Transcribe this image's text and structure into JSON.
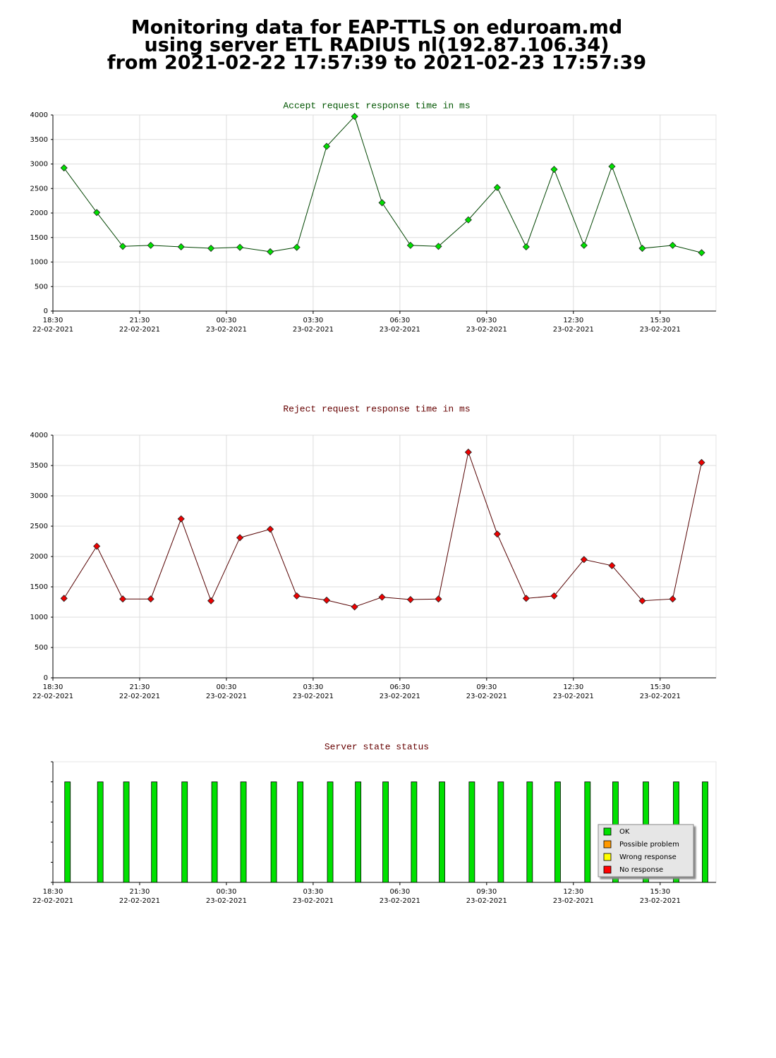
{
  "title_lines": [
    "Monitoring data for EAP-TTLS on eduroam.md",
    "using server ETL RADIUS nl(192.87.106.34)",
    "from 2021-02-22 17:57:39 to 2021-02-23 17:57:39"
  ],
  "chart_data": [
    {
      "type": "line",
      "title": "Accept request response time in ms",
      "title_color": "#005500",
      "x": [
        "2021-02-22 18:53",
        "2021-02-22 20:01",
        "2021-02-22 20:55",
        "2021-02-22 21:53",
        "2021-02-22 22:56",
        "2021-02-22 23:58",
        "2021-02-23 00:58",
        "2021-02-23 02:01",
        "2021-02-23 02:56",
        "2021-02-23 03:58",
        "2021-02-23 04:56",
        "2021-02-23 05:53",
        "2021-02-23 06:52",
        "2021-02-23 07:50",
        "2021-02-23 08:52",
        "2021-02-23 09:52",
        "2021-02-23 10:52",
        "2021-02-23 11:50",
        "2021-02-23 12:52",
        "2021-02-23 13:50",
        "2021-02-23 14:53",
        "2021-02-23 15:56",
        "2021-02-23 16:56"
      ],
      "values": [
        2920,
        2010,
        1320,
        1340,
        1310,
        1280,
        1300,
        1210,
        1300,
        3360,
        3970,
        2210,
        1340,
        1320,
        1860,
        2520,
        1310,
        2890,
        1340,
        2950,
        1280,
        1340,
        1190
      ],
      "color": "#004400",
      "marker_color": "#00e000",
      "xlim": [
        "2021-02-22 18:30",
        "2021-02-23 17:26"
      ],
      "xticks": [
        {
          "value": "2021-02-22 18:30",
          "label": [
            "18:30",
            "22-02-2021"
          ]
        },
        {
          "value": "2021-02-22 21:30",
          "label": [
            "21:30",
            "22-02-2021"
          ]
        },
        {
          "value": "2021-02-23 00:30",
          "label": [
            "00:30",
            "23-02-2021"
          ]
        },
        {
          "value": "2021-02-23 03:30",
          "label": [
            "03:30",
            "23-02-2021"
          ]
        },
        {
          "value": "2021-02-23 06:30",
          "label": [
            "06:30",
            "23-02-2021"
          ]
        },
        {
          "value": "2021-02-23 09:30",
          "label": [
            "09:30",
            "23-02-2021"
          ]
        },
        {
          "value": "2021-02-23 12:30",
          "label": [
            "12:30",
            "23-02-2021"
          ]
        },
        {
          "value": "2021-02-23 15:30",
          "label": [
            "15:30",
            "23-02-2021"
          ]
        }
      ],
      "ylim": [
        0,
        4000
      ],
      "yticks": [
        0,
        500,
        1000,
        1500,
        2000,
        2500,
        3000,
        3500,
        4000
      ],
      "grid": true
    },
    {
      "type": "line",
      "title": "Reject request response time in ms",
      "title_color": "#660000",
      "x": [
        "2021-02-22 18:53",
        "2021-02-22 20:01",
        "2021-02-22 20:55",
        "2021-02-22 21:53",
        "2021-02-22 22:56",
        "2021-02-22 23:58",
        "2021-02-23 00:58",
        "2021-02-23 02:01",
        "2021-02-23 02:56",
        "2021-02-23 03:58",
        "2021-02-23 04:56",
        "2021-02-23 05:53",
        "2021-02-23 06:52",
        "2021-02-23 07:50",
        "2021-02-23 08:52",
        "2021-02-23 09:52",
        "2021-02-23 10:52",
        "2021-02-23 11:50",
        "2021-02-23 12:52",
        "2021-02-23 13:50",
        "2021-02-23 14:53",
        "2021-02-23 15:56",
        "2021-02-23 16:56"
      ],
      "values": [
        1310,
        2170,
        1300,
        1300,
        2620,
        1270,
        2310,
        2450,
        1350,
        1280,
        1170,
        1330,
        1290,
        1300,
        3720,
        2370,
        1310,
        1350,
        1950,
        1850,
        1270,
        1300,
        3550
      ],
      "color": "#550000",
      "marker_color": "#ee0000",
      "xlim": [
        "2021-02-22 18:30",
        "2021-02-23 17:26"
      ],
      "xticks": [
        {
          "value": "2021-02-22 18:30",
          "label": [
            "18:30",
            "22-02-2021"
          ]
        },
        {
          "value": "2021-02-22 21:30",
          "label": [
            "21:30",
            "22-02-2021"
          ]
        },
        {
          "value": "2021-02-23 00:30",
          "label": [
            "00:30",
            "23-02-2021"
          ]
        },
        {
          "value": "2021-02-23 03:30",
          "label": [
            "03:30",
            "23-02-2021"
          ]
        },
        {
          "value": "2021-02-23 06:30",
          "label": [
            "06:30",
            "23-02-2021"
          ]
        },
        {
          "value": "2021-02-23 09:30",
          "label": [
            "09:30",
            "23-02-2021"
          ]
        },
        {
          "value": "2021-02-23 12:30",
          "label": [
            "12:30",
            "23-02-2021"
          ]
        },
        {
          "value": "2021-02-23 15:30",
          "label": [
            "15:30",
            "23-02-2021"
          ]
        }
      ],
      "ylim": [
        0,
        4000
      ],
      "yticks": [
        0,
        500,
        1000,
        1500,
        2000,
        2500,
        3000,
        3500,
        4000
      ],
      "grid": true
    },
    {
      "type": "bar",
      "title": "Server state status",
      "title_color": "#660000",
      "x": [
        "2021-02-22 18:53",
        "2021-02-22 20:01",
        "2021-02-22 20:55",
        "2021-02-22 21:53",
        "2021-02-22 22:56",
        "2021-02-22 23:58",
        "2021-02-23 00:58",
        "2021-02-23 02:01",
        "2021-02-23 02:56",
        "2021-02-23 03:58",
        "2021-02-23 04:56",
        "2021-02-23 05:53",
        "2021-02-23 06:52",
        "2021-02-23 07:50",
        "2021-02-23 08:52",
        "2021-02-23 09:52",
        "2021-02-23 10:52",
        "2021-02-23 11:50",
        "2021-02-23 12:52",
        "2021-02-23 13:50",
        "2021-02-23 14:53",
        "2021-02-23 15:56",
        "2021-02-23 16:56"
      ],
      "series": [
        {
          "name": "OK",
          "color": "#00e000",
          "values": [
            1,
            1,
            1,
            1,
            1,
            1,
            1,
            1,
            1,
            1,
            1,
            1,
            1,
            1,
            1,
            1,
            1,
            1,
            1,
            1,
            1,
            1,
            1
          ]
        },
        {
          "name": "Possible problem",
          "color": "#ff9900",
          "values": [
            0,
            0,
            0,
            0,
            0,
            0,
            0,
            0,
            0,
            0,
            0,
            0,
            0,
            0,
            0,
            0,
            0,
            0,
            0,
            0,
            0,
            0,
            0
          ]
        },
        {
          "name": "Wrong response",
          "color": "#ffff00",
          "values": [
            0,
            0,
            0,
            0,
            0,
            0,
            0,
            0,
            0,
            0,
            0,
            0,
            0,
            0,
            0,
            0,
            0,
            0,
            0,
            0,
            0,
            0,
            0
          ]
        },
        {
          "name": "No response",
          "color": "#ff0000",
          "values": [
            0,
            0,
            0,
            0,
            0,
            0,
            0,
            0,
            0,
            0,
            0,
            0,
            0,
            0,
            0,
            0,
            0,
            0,
            0,
            0,
            0,
            0,
            0
          ]
        }
      ],
      "xlim": [
        "2021-02-22 18:30",
        "2021-02-23 17:26"
      ],
      "xticks": [
        {
          "value": "2021-02-22 18:30",
          "label": [
            "18:30",
            "22-02-2021"
          ]
        },
        {
          "value": "2021-02-22 21:30",
          "label": [
            "21:30",
            "22-02-2021"
          ]
        },
        {
          "value": "2021-02-23 00:30",
          "label": [
            "00:30",
            "23-02-2021"
          ]
        },
        {
          "value": "2021-02-23 03:30",
          "label": [
            "03:30",
            "23-02-2021"
          ]
        },
        {
          "value": "2021-02-23 06:30",
          "label": [
            "06:30",
            "23-02-2021"
          ]
        },
        {
          "value": "2021-02-23 09:30",
          "label": [
            "09:30",
            "23-02-2021"
          ]
        },
        {
          "value": "2021-02-23 12:30",
          "label": [
            "12:30",
            "23-02-2021"
          ]
        },
        {
          "value": "2021-02-23 15:30",
          "label": [
            "15:30",
            "23-02-2021"
          ]
        }
      ],
      "ylim": [
        0,
        1.2
      ],
      "yticks": [
        0,
        0.2,
        0.4,
        0.6,
        0.8,
        1,
        1.2
      ],
      "ytick_labels": false,
      "grid": false,
      "legend": "lower right"
    }
  ]
}
